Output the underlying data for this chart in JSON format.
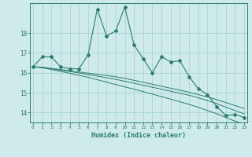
{
  "xlabel": "Humidex (Indice chaleur)",
  "background_color": "#ceeaea",
  "grid_color": "#aad4d4",
  "line_color": "#2a7d6e",
  "x_values": [
    0,
    1,
    2,
    3,
    4,
    5,
    6,
    7,
    8,
    9,
    10,
    11,
    12,
    13,
    14,
    15,
    16,
    17,
    18,
    19,
    20,
    21,
    22,
    23
  ],
  "y_main": [
    16.3,
    16.8,
    16.8,
    16.3,
    16.2,
    16.2,
    16.9,
    19.2,
    17.85,
    18.1,
    19.3,
    17.4,
    16.7,
    16.0,
    16.8,
    16.55,
    16.6,
    15.8,
    15.2,
    14.9,
    14.3,
    13.85,
    13.9,
    13.75
  ],
  "y_line1": [
    16.3,
    16.28,
    16.22,
    16.16,
    16.1,
    16.04,
    15.98,
    15.92,
    15.86,
    15.8,
    15.72,
    15.62,
    15.52,
    15.42,
    15.32,
    15.22,
    15.12,
    15.02,
    14.9,
    14.78,
    14.65,
    14.5,
    14.35,
    14.2
  ],
  "y_line2": [
    16.3,
    16.27,
    16.2,
    16.13,
    16.06,
    15.99,
    15.91,
    15.83,
    15.75,
    15.67,
    15.57,
    15.47,
    15.37,
    15.27,
    15.17,
    15.07,
    14.97,
    14.87,
    14.74,
    14.6,
    14.45,
    14.27,
    14.1,
    13.93
  ],
  "y_line3": [
    16.3,
    16.25,
    16.16,
    16.07,
    15.97,
    15.87,
    15.77,
    15.65,
    15.53,
    15.41,
    15.29,
    15.17,
    15.05,
    14.93,
    14.8,
    14.67,
    14.54,
    14.41,
    14.26,
    14.1,
    13.94,
    13.75,
    13.57,
    13.4
  ],
  "ylim": [
    13.5,
    19.5
  ],
  "yticks": [
    14,
    15,
    16,
    17,
    18
  ],
  "xlim": [
    -0.3,
    23.3
  ],
  "xticks": [
    0,
    1,
    2,
    3,
    4,
    5,
    6,
    7,
    8,
    9,
    10,
    11,
    12,
    13,
    14,
    15,
    16,
    17,
    18,
    19,
    20,
    21,
    22,
    23
  ]
}
